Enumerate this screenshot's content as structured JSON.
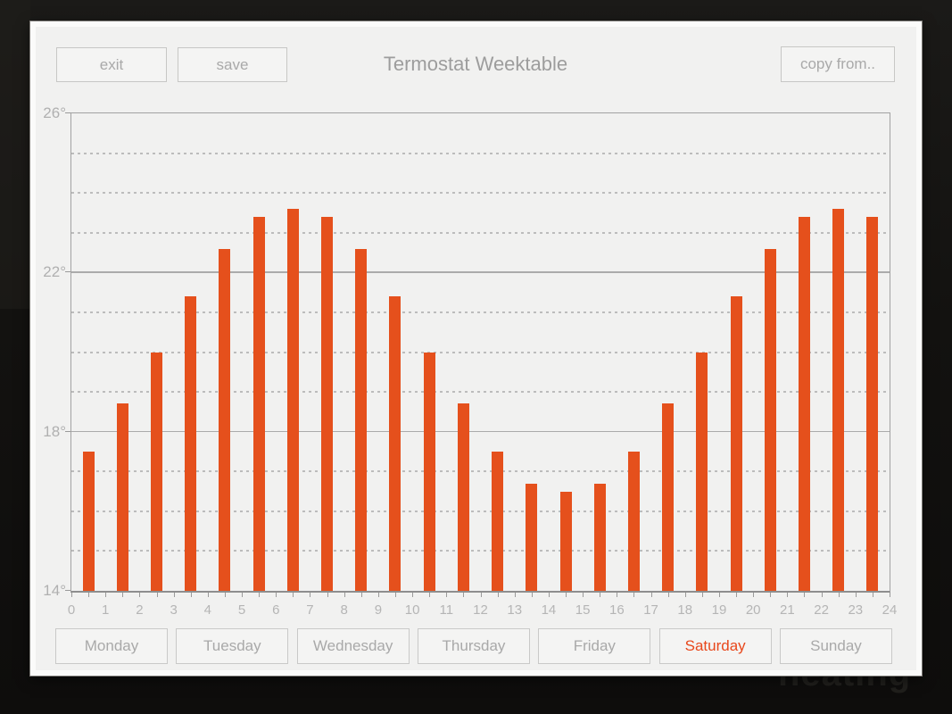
{
  "background": {
    "watermark": "heating"
  },
  "toolbar": {
    "exit_label": "exit",
    "save_label": "save",
    "title": "Termostat Weektable",
    "copy_from_label": "copy from.."
  },
  "day_tabs": {
    "days": [
      "Monday",
      "Tuesday",
      "Wednesday",
      "Thursday",
      "Friday",
      "Saturday",
      "Sunday"
    ],
    "selected": "Saturday"
  },
  "chart_data": {
    "type": "bar",
    "title": "Termostat Weektable",
    "unit": "degrees C",
    "x_hours": [
      0,
      1,
      2,
      3,
      4,
      5,
      6,
      7,
      8,
      9,
      10,
      11,
      12,
      13,
      14,
      15,
      16,
      17,
      18,
      19,
      20,
      21,
      22,
      23
    ],
    "values": [
      17.5,
      18.7,
      20,
      21.4,
      22.6,
      23.4,
      23.6,
      23.4,
      22.6,
      21.4,
      20,
      18.7,
      17.5,
      16.7,
      16.5,
      16.7,
      17.5,
      18.7,
      20,
      21.4,
      22.6,
      23.4,
      23.6,
      23.4
    ],
    "ylim": [
      14,
      26
    ],
    "yticks": [
      26,
      22,
      18,
      14
    ],
    "ytick_labels": [
      "26°",
      "22°",
      "18°",
      "14°"
    ],
    "minor_grid_degrees": [
      15,
      16,
      17,
      19,
      20,
      21,
      23,
      24,
      25
    ],
    "xticks": [
      0,
      1,
      2,
      3,
      4,
      5,
      6,
      7,
      8,
      9,
      10,
      11,
      12,
      13,
      14,
      15,
      16,
      17,
      18,
      19,
      20,
      21,
      22,
      23,
      24
    ],
    "xtick_minor_step": 0.5,
    "grid": "solid at 4-degree majors, dashed at 1-degree minors",
    "legend_position": "none",
    "bar_color": "#E5501C"
  },
  "colors": {
    "accent": "#E5501C",
    "panel_bg": "#F1F1F0",
    "text_muted": "#A9A9A9",
    "grid_solid": "#ABABAB",
    "grid_dashed": "#BDBDBD"
  }
}
